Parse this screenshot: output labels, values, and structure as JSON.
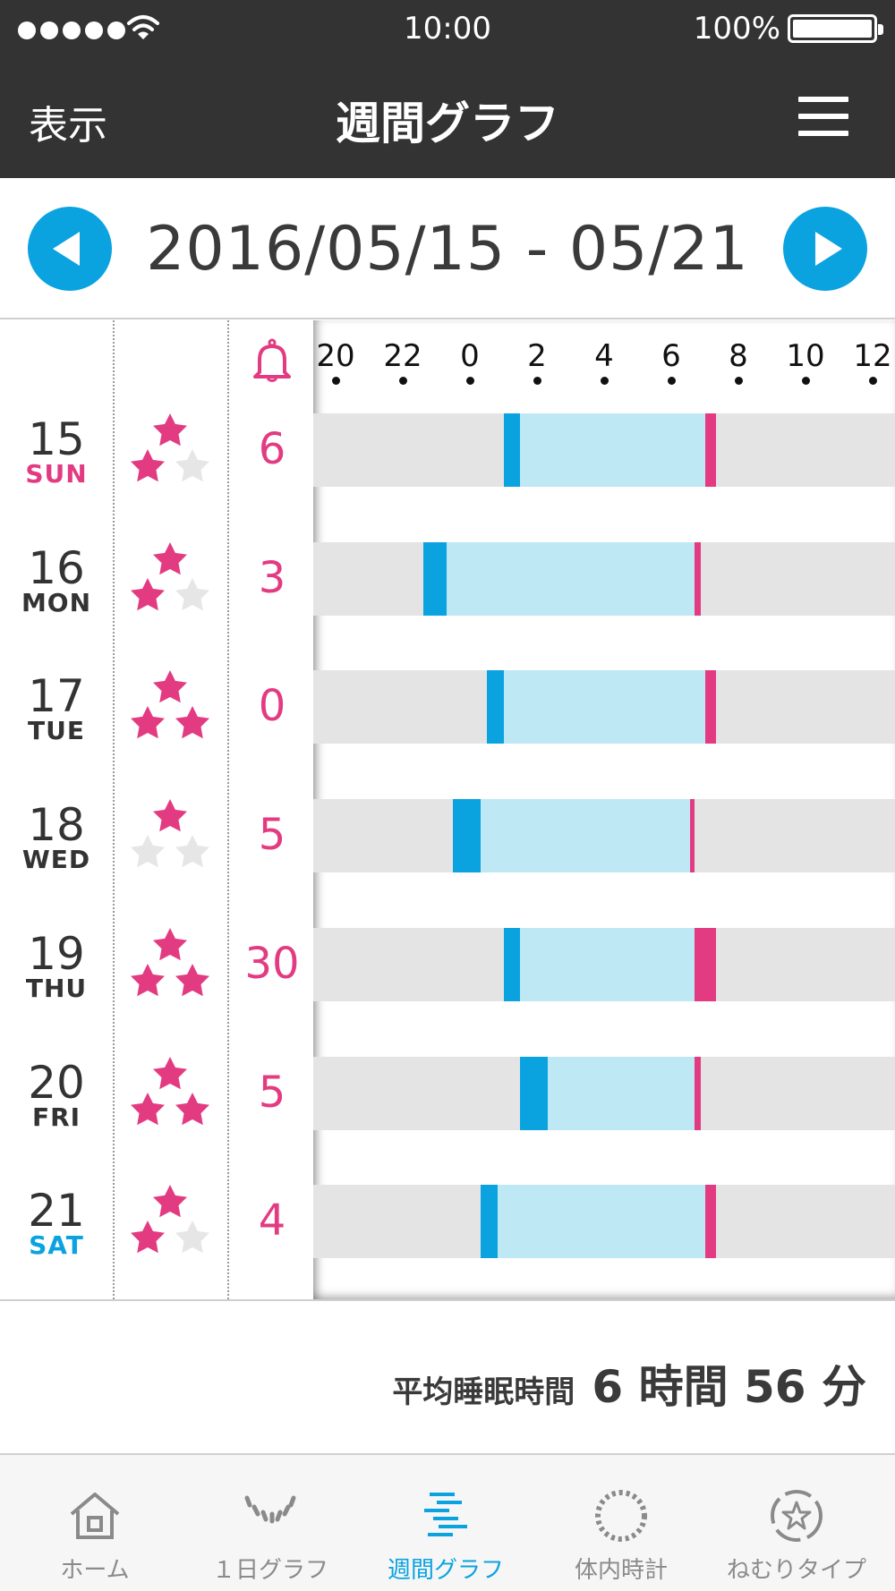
{
  "status_bar": {
    "time": "10:00",
    "battery": "100%",
    "battery_level": 1.0,
    "signal_dots": 5
  },
  "nav": {
    "left_label": "表示",
    "title": "週間グラフ",
    "menu_icon": "hamburger-icon"
  },
  "date_nav": {
    "prev_icon": "arrow-left-icon",
    "range": "2016/05/15 - 05/21",
    "next_icon": "arrow-right-icon"
  },
  "colors": {
    "accent_blue": "#0aa3e0",
    "accent_pink": "#e33b82",
    "sleep_fill": "#bfe8f5",
    "band_gray": "#e4e4e4",
    "header_dark": "#333333"
  },
  "graph": {
    "alarm_icon": "bell-icon",
    "axis_hours": [
      "20",
      "22",
      "0",
      "2",
      "4",
      "6",
      "8",
      "10",
      "12"
    ],
    "days": [
      {
        "day": "15",
        "weekday": "SUN",
        "weekday_color": "#e33b82",
        "rating": 2,
        "alarm_count": "6",
        "bedtime": 1.0,
        "asleep": 1.5,
        "wake": 7.0,
        "get_up": 7.33
      },
      {
        "day": "16",
        "weekday": "MON",
        "weekday_color": "#333333",
        "rating": 2,
        "alarm_count": "3",
        "bedtime": -1.4,
        "asleep": -0.7,
        "wake": 6.7,
        "get_up": 6.87
      },
      {
        "day": "17",
        "weekday": "TUE",
        "weekday_color": "#333333",
        "rating": 3,
        "alarm_count": "0",
        "bedtime": 0.5,
        "asleep": 1.0,
        "wake": 7.0,
        "get_up": 7.33
      },
      {
        "day": "18",
        "weekday": "WED",
        "weekday_color": "#333333",
        "rating": 1,
        "alarm_count": "5",
        "bedtime": -0.5,
        "asleep": 0.33,
        "wake": 6.55,
        "get_up": 6.7
      },
      {
        "day": "19",
        "weekday": "THU",
        "weekday_color": "#333333",
        "rating": 3,
        "alarm_count": "30",
        "bedtime": 1.0,
        "asleep": 1.5,
        "wake": 6.7,
        "get_up": 7.33
      },
      {
        "day": "20",
        "weekday": "FRI",
        "weekday_color": "#333333",
        "rating": 3,
        "alarm_count": "5",
        "bedtime": 1.5,
        "asleep": 2.33,
        "wake": 6.7,
        "get_up": 6.87
      },
      {
        "day": "21",
        "weekday": "SAT",
        "weekday_color": "#0aa3e0",
        "rating": 2,
        "alarm_count": "4",
        "bedtime": 0.33,
        "asleep": 0.83,
        "wake": 7.0,
        "get_up": 7.33
      }
    ]
  },
  "summary": {
    "label": "平均睡眠時間",
    "value": "6 時間 56 分"
  },
  "tabs": [
    {
      "label": "ホーム",
      "icon": "home-icon",
      "active": false
    },
    {
      "label": "１日グラフ",
      "icon": "daily-graph-icon",
      "active": false
    },
    {
      "label": "週間グラフ",
      "icon": "weekly-graph-icon",
      "active": true
    },
    {
      "label": "体内時計",
      "icon": "body-clock-icon",
      "active": false
    },
    {
      "label": "ねむりタイプ",
      "icon": "sleep-type-icon",
      "active": false
    }
  ]
}
